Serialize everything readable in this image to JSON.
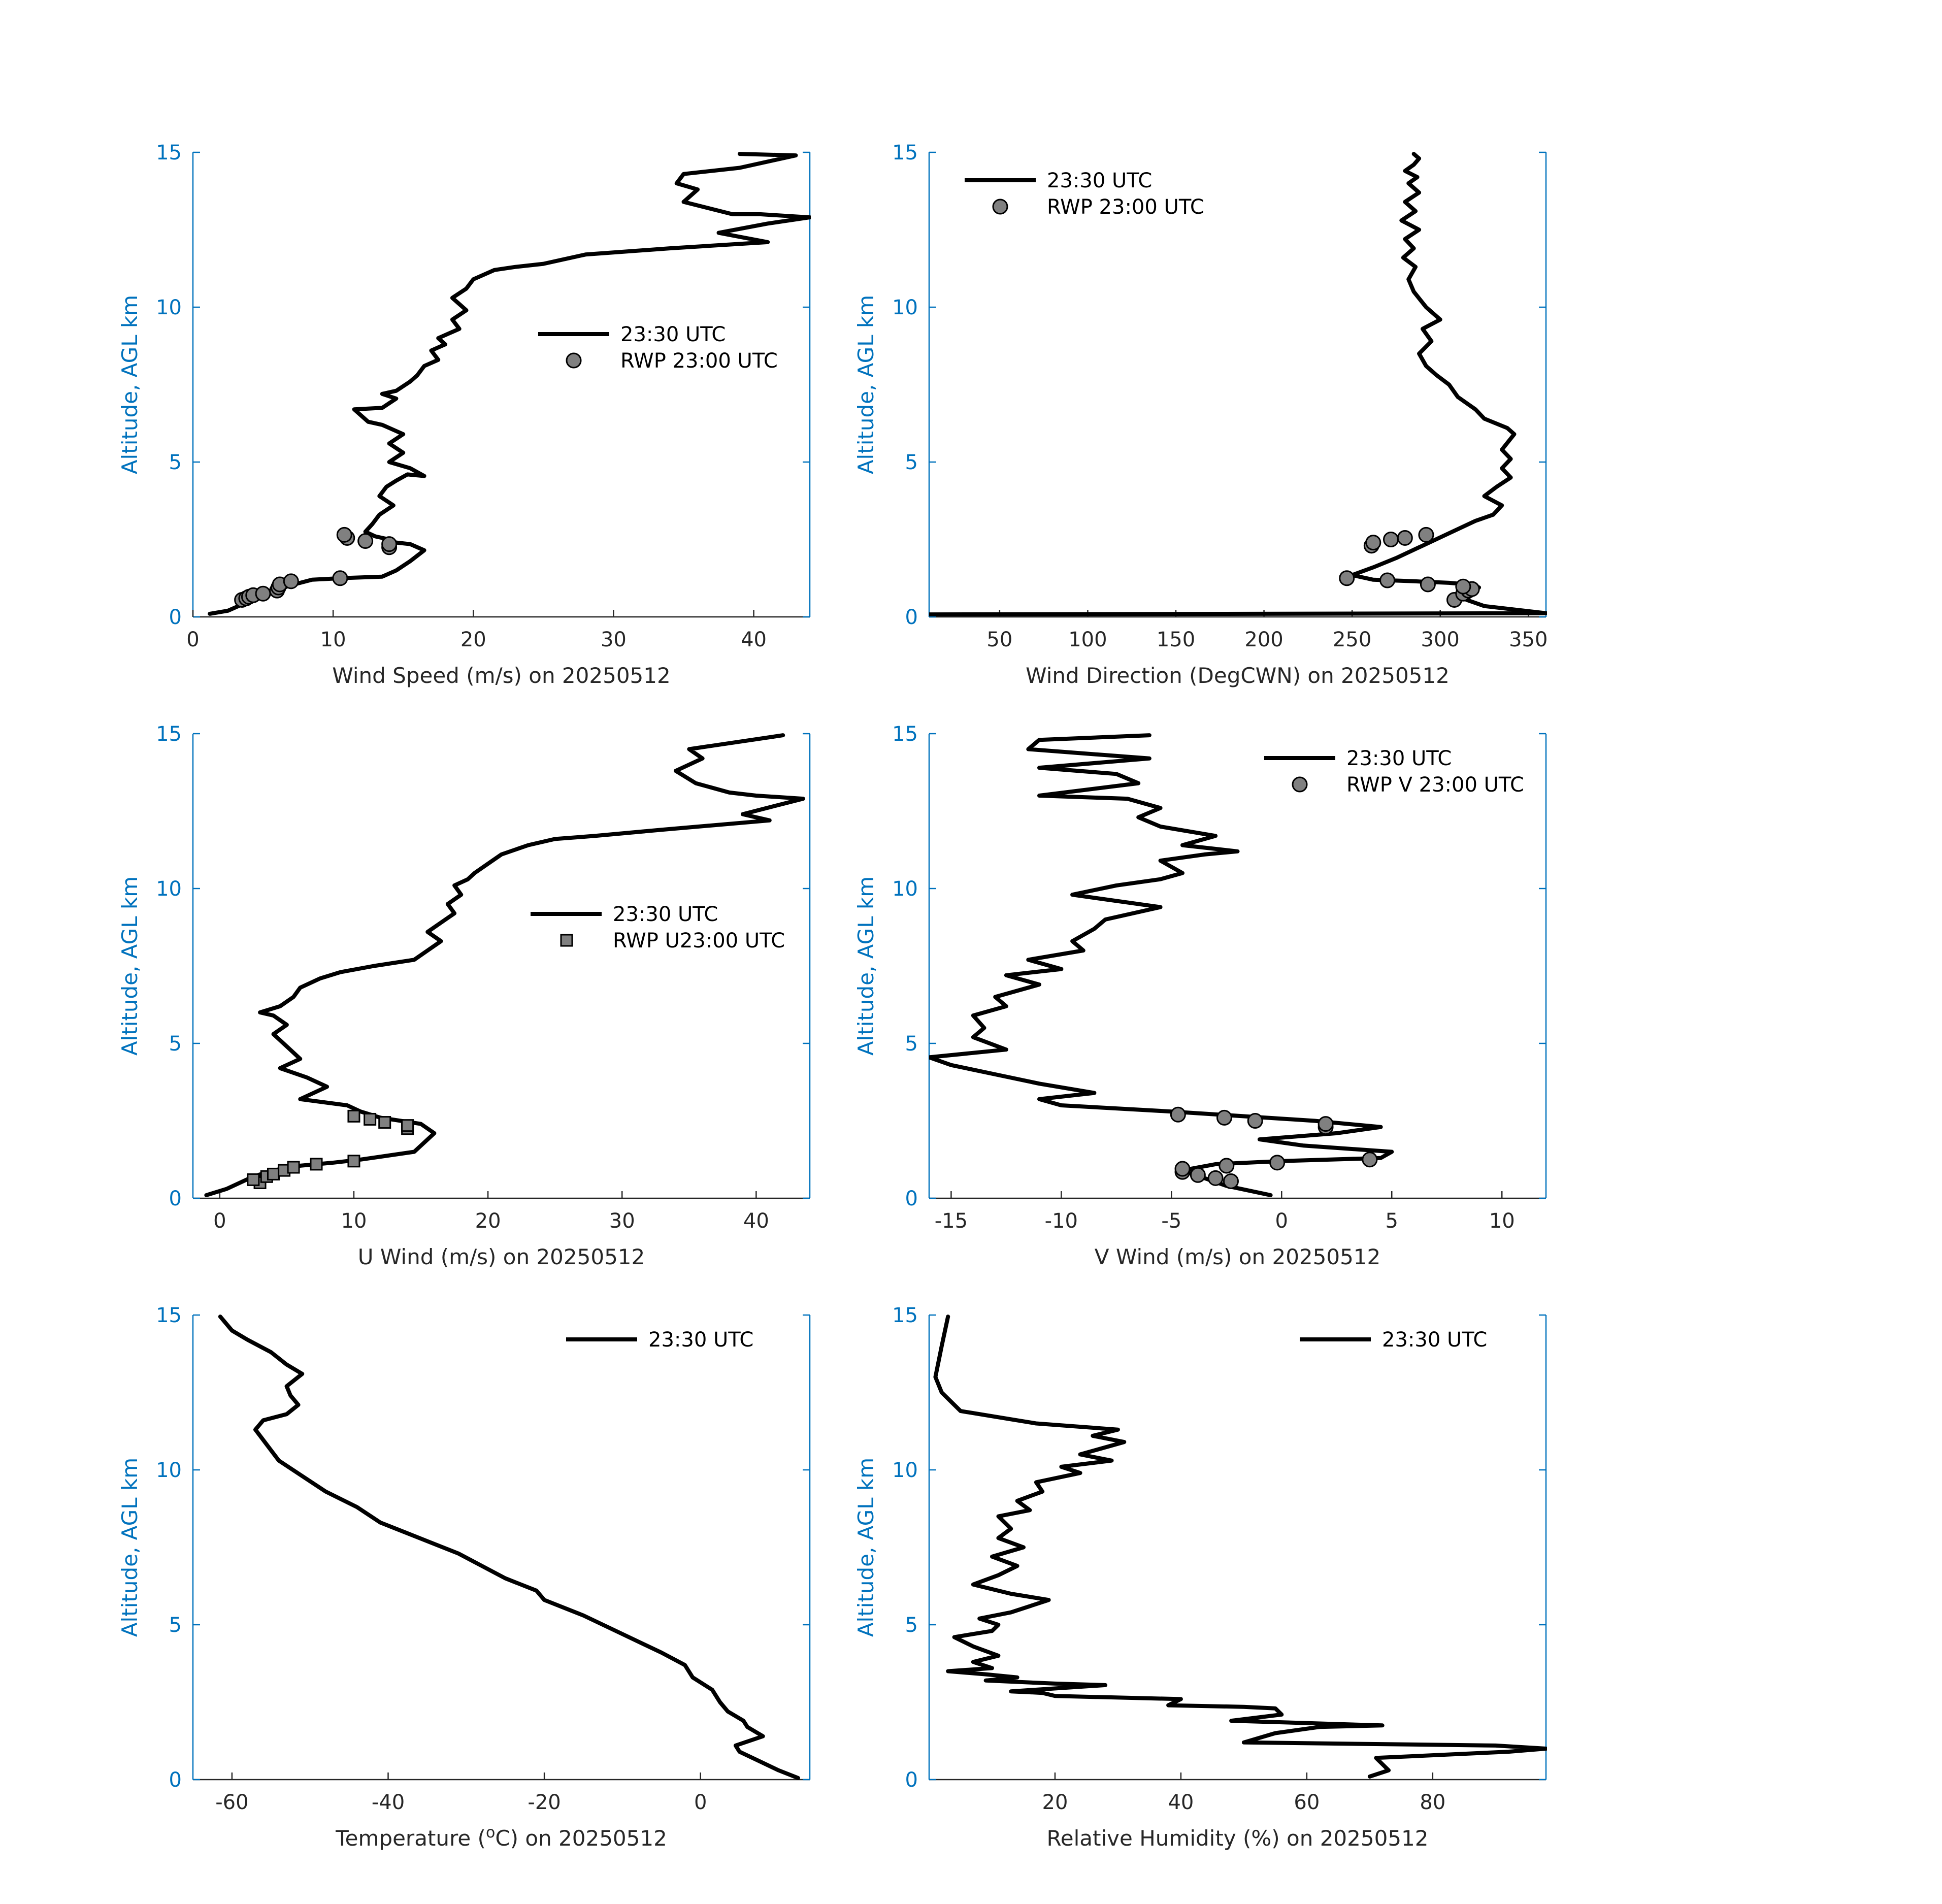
{
  "chart_data": [
    {
      "type": "line",
      "xlabel": "Wind Speed (m/s) on 20250512",
      "ylabel": "Altitude, AGL km",
      "xlim": [
        0,
        44
      ],
      "ylim": [
        0,
        15
      ],
      "xticks": [
        0,
        10,
        20,
        30,
        40
      ],
      "yticks": [
        0,
        5,
        10,
        15
      ],
      "legend": {
        "position": "center-right",
        "entries": [
          "23:30 UTC",
          "RWP 23:00 UTC"
        ]
      },
      "series": [
        {
          "name": "23:30 UTC",
          "style": "line",
          "x": [
            1.2,
            2.5,
            3.5,
            4.5,
            5.8,
            6.8,
            8.5,
            10.5,
            13.5,
            14.5,
            15.5,
            16.5,
            15.5,
            14.5,
            14.0,
            13.0,
            12.3,
            12.8,
            13.3,
            14.3,
            13.3,
            13.8,
            14.5,
            15.3,
            16.5,
            15.5,
            14.0,
            15.0,
            14.0,
            15.0,
            14.0,
            13.5,
            12.5,
            11.5,
            13.5,
            14.5,
            13.5,
            14.5,
            15.5,
            16.0,
            16.5,
            17.5,
            17.0,
            18.0,
            17.5,
            19.0,
            18.5,
            19.5,
            19.0,
            18.5,
            19.5,
            20.0,
            21.5,
            23.0,
            25.0,
            28.0,
            34.0,
            41.0,
            37.5,
            41.0,
            44.0,
            40.5,
            38.5,
            35.0,
            36.0,
            34.5,
            35.0,
            39.0,
            43.0,
            39.0
          ],
          "y": [
            0.1,
            0.2,
            0.4,
            0.6,
            0.8,
            1.0,
            1.2,
            1.25,
            1.3,
            1.5,
            1.8,
            2.15,
            2.35,
            2.4,
            2.5,
            2.6,
            2.75,
            3.0,
            3.3,
            3.6,
            3.9,
            4.2,
            4.4,
            4.6,
            4.55,
            4.8,
            5.0,
            5.3,
            5.6,
            5.9,
            6.1,
            6.2,
            6.3,
            6.7,
            6.75,
            7.05,
            7.2,
            7.3,
            7.6,
            7.8,
            8.1,
            8.3,
            8.6,
            8.8,
            9.0,
            9.3,
            9.6,
            9.9,
            10.1,
            10.3,
            10.6,
            10.9,
            11.2,
            11.3,
            11.4,
            11.7,
            11.9,
            12.1,
            12.4,
            12.7,
            12.9,
            13.0,
            13.0,
            13.4,
            13.8,
            14.0,
            14.3,
            14.5,
            14.9,
            14.95
          ]
        },
        {
          "name": "RWP 23:00 UTC",
          "style": "circle",
          "x": [
            3.5,
            3.8,
            4.0,
            4.3,
            5.0,
            6.0,
            6.1,
            6.2,
            7.0,
            10.5,
            14.0,
            14.0,
            12.3,
            11.0,
            10.8
          ],
          "y": [
            0.55,
            0.6,
            0.65,
            0.7,
            0.75,
            0.85,
            0.95,
            1.05,
            1.15,
            1.25,
            2.25,
            2.35,
            2.45,
            2.55,
            2.65
          ]
        }
      ]
    },
    {
      "type": "line",
      "xlabel": "Wind Direction (DegCWN) on 20250512",
      "ylabel": "Altitude, AGL km",
      "xlim": [
        10,
        360
      ],
      "ylim": [
        0,
        15
      ],
      "xticks": [
        50,
        100,
        150,
        200,
        250,
        300,
        350
      ],
      "yticks": [
        0,
        5,
        10,
        15
      ],
      "legend": {
        "position": "top-left",
        "entries": [
          "23:30 UTC",
          "RWP 23:00 UTC"
        ]
      },
      "series": [
        {
          "name": "23:30 UTC",
          "style": "line",
          "x": [
            10,
            360,
            325,
            315,
            318,
            322,
            315,
            305,
            285,
            262,
            250,
            262,
            275,
            290,
            305,
            320,
            330,
            335,
            325,
            332,
            340,
            335,
            340,
            335,
            342,
            338,
            325,
            320,
            310,
            305,
            298,
            292,
            288,
            295,
            290,
            300,
            292,
            285,
            282,
            286,
            279,
            285,
            280,
            288,
            278,
            286,
            280,
            288,
            282,
            287,
            280,
            285,
            288,
            285
          ],
          "y": [
            0.08,
            0.12,
            0.35,
            0.55,
            0.75,
            0.95,
            1.05,
            1.1,
            1.15,
            1.2,
            1.35,
            1.6,
            1.9,
            2.3,
            2.7,
            3.1,
            3.3,
            3.6,
            3.9,
            4.2,
            4.5,
            4.8,
            5.1,
            5.4,
            5.9,
            6.1,
            6.4,
            6.7,
            7.1,
            7.5,
            7.8,
            8.1,
            8.5,
            8.9,
            9.3,
            9.6,
            10.0,
            10.5,
            10.9,
            11.3,
            11.6,
            11.9,
            12.2,
            12.5,
            12.8,
            13.1,
            13.4,
            13.7,
            14.0,
            14.2,
            14.4,
            14.6,
            14.8,
            14.95
          ]
        },
        {
          "name": "RWP 23:00 UTC",
          "style": "circle",
          "x": [
            308,
            313,
            316,
            318,
            313,
            293,
            270,
            247,
            261,
            262,
            272,
            280,
            292
          ],
          "y": [
            0.55,
            0.75,
            0.85,
            0.9,
            0.98,
            1.05,
            1.18,
            1.25,
            2.3,
            2.4,
            2.5,
            2.55,
            2.65
          ]
        }
      ]
    },
    {
      "type": "line",
      "xlabel": "U Wind (m/s) on 20250512",
      "ylabel": "Altitude, AGL km",
      "xlim": [
        -2,
        44
      ],
      "ylim": [
        0,
        15
      ],
      "xticks": [
        0,
        10,
        20,
        30,
        40
      ],
      "yticks": [
        0,
        5,
        10,
        15
      ],
      "legend": {
        "position": "center-right",
        "entries": [
          "23:30 UTC",
          "RWP U23:00 UTC"
        ]
      },
      "series": [
        {
          "name": "23:30 UTC",
          "style": "line",
          "x": [
            -1.0,
            0.5,
            1.5,
            2.5,
            4.0,
            6.0,
            8.5,
            10.5,
            14.5,
            16.0,
            15.0,
            12.0,
            10.5,
            9.5,
            6.0,
            8.0,
            6.5,
            4.5,
            6.0,
            5.0,
            4.0,
            5.0,
            4.0,
            3.0,
            4.5,
            5.5,
            6.0,
            7.5,
            9.0,
            11.5,
            14.5,
            15.5,
            16.5,
            15.5,
            16.5,
            17.5,
            17.0,
            18.0,
            17.5,
            18.5,
            19.0,
            20.0,
            21.0,
            23.0,
            25.0,
            28.0,
            33.0,
            41.0,
            39.0,
            43.5,
            40.0,
            38.0,
            35.5,
            34.0,
            36.0,
            35.0,
            42.0
          ],
          "y": [
            0.1,
            0.3,
            0.5,
            0.7,
            0.9,
            1.05,
            1.15,
            1.25,
            1.5,
            2.1,
            2.4,
            2.6,
            2.8,
            3.0,
            3.2,
            3.6,
            3.9,
            4.2,
            4.5,
            4.9,
            5.3,
            5.6,
            5.9,
            6.0,
            6.2,
            6.5,
            6.8,
            7.1,
            7.3,
            7.5,
            7.7,
            8.0,
            8.3,
            8.6,
            8.9,
            9.2,
            9.5,
            9.8,
            10.1,
            10.3,
            10.5,
            10.8,
            11.1,
            11.4,
            11.6,
            11.7,
            11.9,
            12.2,
            12.4,
            12.9,
            13.0,
            13.1,
            13.4,
            13.8,
            14.2,
            14.5,
            14.95
          ]
        },
        {
          "name": "RWP U23:00 UTC",
          "style": "square",
          "x": [
            3.0,
            2.5,
            3.5,
            4.0,
            4.8,
            5.5,
            7.2,
            10.0,
            14.0,
            14.0,
            12.3,
            11.2,
            10.0
          ],
          "y": [
            0.5,
            0.6,
            0.7,
            0.78,
            0.9,
            1.0,
            1.1,
            1.2,
            2.25,
            2.35,
            2.45,
            2.55,
            2.65
          ]
        }
      ]
    },
    {
      "type": "line",
      "xlabel": "V Wind (m/s) on 20250512",
      "ylabel": "Altitude, AGL km",
      "xlim": [
        -16,
        12
      ],
      "ylim": [
        0,
        15
      ],
      "xticks": [
        -15,
        -10,
        -5,
        0,
        5,
        10
      ],
      "yticks": [
        0,
        5,
        10,
        15
      ],
      "legend": {
        "position": "top-right",
        "entries": [
          "23:30 UTC",
          "RWP V 23:00 UTC"
        ]
      },
      "series": [
        {
          "name": "23:30 UTC",
          "style": "line",
          "x": [
            -0.5,
            -2.5,
            -4.5,
            -3.0,
            0.0,
            4.5,
            5.0,
            1.0,
            -1.0,
            2.5,
            4.5,
            1.5,
            -5.0,
            -10.0,
            -11.0,
            -8.5,
            -11.0,
            -13.0,
            -15.0,
            -16.0,
            -12.5,
            -14.0,
            -13.5,
            -14.0,
            -12.5,
            -13.0,
            -11.0,
            -12.5,
            -10.0,
            -11.5,
            -9.0,
            -9.5,
            -8.5,
            -8.0,
            -5.5,
            -9.5,
            -7.5,
            -5.5,
            -4.5,
            -5.5,
            -3.5,
            -2.0,
            -4.5,
            -3.0,
            -5.5,
            -6.5,
            -5.5,
            -7.0,
            -11.0,
            -6.5,
            -7.5,
            -11.0,
            -6.0,
            -11.5,
            -11.0,
            -6.0
          ],
          "y": [
            0.1,
            0.4,
            0.9,
            1.1,
            1.2,
            1.3,
            1.5,
            1.7,
            1.9,
            2.1,
            2.3,
            2.5,
            2.8,
            3.0,
            3.2,
            3.4,
            3.7,
            4.0,
            4.3,
            4.55,
            4.8,
            5.2,
            5.5,
            5.9,
            6.2,
            6.5,
            6.9,
            7.2,
            7.4,
            7.7,
            8.0,
            8.3,
            8.7,
            9.0,
            9.4,
            9.8,
            10.1,
            10.3,
            10.5,
            10.9,
            11.1,
            11.2,
            11.4,
            11.7,
            12.0,
            12.3,
            12.6,
            12.9,
            13.0,
            13.4,
            13.7,
            13.9,
            14.2,
            14.5,
            14.8,
            14.95
          ]
        },
        {
          "name": "RWP V 23:00 UTC",
          "style": "circle",
          "x": [
            -4.5,
            -4.5,
            -3.8,
            -3.0,
            -2.3,
            -2.5,
            -0.2,
            4.0,
            2.0,
            2.0,
            -1.2,
            -2.6,
            -4.7
          ],
          "y": [
            0.85,
            0.95,
            0.75,
            0.65,
            0.55,
            1.05,
            1.15,
            1.25,
            2.3,
            2.4,
            2.5,
            2.6,
            2.7
          ]
        }
      ]
    },
    {
      "type": "line",
      "xlabel": "Temperature (",
      "xlabel_sup": "o",
      "xlabel_end": "C) on 20250512",
      "ylabel": "Altitude, AGL km",
      "xlim": [
        -65,
        14
      ],
      "ylim": [
        0,
        15
      ],
      "xticks": [
        -60,
        -40,
        -20,
        0
      ],
      "yticks": [
        0,
        5,
        10,
        15
      ],
      "legend": {
        "position": "top-right",
        "entries": [
          "23:30 UTC"
        ]
      },
      "series": [
        {
          "name": "23:30 UTC",
          "style": "line",
          "x": [
            12.5,
            10.0,
            7.5,
            5.0,
            4.5,
            8.0,
            6.0,
            5.5,
            3.5,
            2.5,
            1.5,
            -1.0,
            -2.0,
            -5.0,
            -10.0,
            -15.0,
            -20.0,
            -21.0,
            -25.0,
            -28.0,
            -31.0,
            -35.0,
            -38.0,
            -41.0,
            -44.0,
            -48.0,
            -51.0,
            -54.0,
            -55.5,
            -57.0,
            -56.0,
            -53.0,
            -51.5,
            -52.5,
            -53.0,
            -51.0,
            -53.0,
            -55.0,
            -58.0,
            -60.0,
            -61.0,
            -61.5
          ],
          "y": [
            0.05,
            0.3,
            0.6,
            0.9,
            1.1,
            1.4,
            1.7,
            1.9,
            2.2,
            2.5,
            2.9,
            3.3,
            3.7,
            4.1,
            4.7,
            5.3,
            5.8,
            6.1,
            6.5,
            6.9,
            7.3,
            7.7,
            8.0,
            8.3,
            8.8,
            9.3,
            9.8,
            10.3,
            10.8,
            11.3,
            11.6,
            11.8,
            12.1,
            12.4,
            12.7,
            13.1,
            13.4,
            13.8,
            14.2,
            14.5,
            14.8,
            14.95
          ]
        }
      ]
    },
    {
      "type": "line",
      "xlabel": "Relative Humidity (%) on 20250512",
      "ylabel": "Altitude, AGL km",
      "xlim": [
        0,
        98
      ],
      "ylim": [
        0,
        15
      ],
      "xticks": [
        20,
        40,
        60,
        80
      ],
      "yticks": [
        0,
        5,
        10,
        15
      ],
      "legend": {
        "position": "top-right",
        "entries": [
          "23:30 UTC"
        ]
      },
      "series": [
        {
          "name": "23:30 UTC",
          "style": "line",
          "x": [
            70,
            73,
            71,
            92,
            98,
            90,
            50,
            55,
            62,
            72,
            48,
            56,
            55,
            50,
            38,
            40,
            20,
            18,
            13,
            28,
            20,
            9,
            14,
            9,
            3,
            10,
            7,
            11,
            7,
            4,
            10,
            11,
            8,
            13,
            16,
            19,
            13,
            7,
            11,
            14,
            10,
            15,
            11,
            13,
            11,
            16,
            14,
            18,
            17,
            24,
            21,
            29,
            24,
            31,
            26,
            30,
            17,
            5,
            2,
            1,
            2,
            3
          ],
          "y": [
            0.1,
            0.3,
            0.7,
            0.9,
            1.0,
            1.1,
            1.2,
            1.5,
            1.7,
            1.75,
            1.9,
            2.1,
            2.3,
            2.35,
            2.4,
            2.6,
            2.7,
            2.8,
            2.85,
            3.05,
            3.1,
            3.2,
            3.3,
            3.4,
            3.5,
            3.6,
            3.8,
            4.0,
            4.3,
            4.6,
            4.8,
            5.0,
            5.2,
            5.4,
            5.6,
            5.8,
            6.0,
            6.3,
            6.6,
            6.9,
            7.2,
            7.5,
            7.8,
            8.1,
            8.5,
            8.7,
            9.0,
            9.3,
            9.6,
            9.9,
            10.1,
            10.3,
            10.5,
            10.9,
            11.1,
            11.3,
            11.5,
            11.9,
            12.5,
            13.0,
            14.0,
            14.95
          ]
        }
      ]
    }
  ]
}
